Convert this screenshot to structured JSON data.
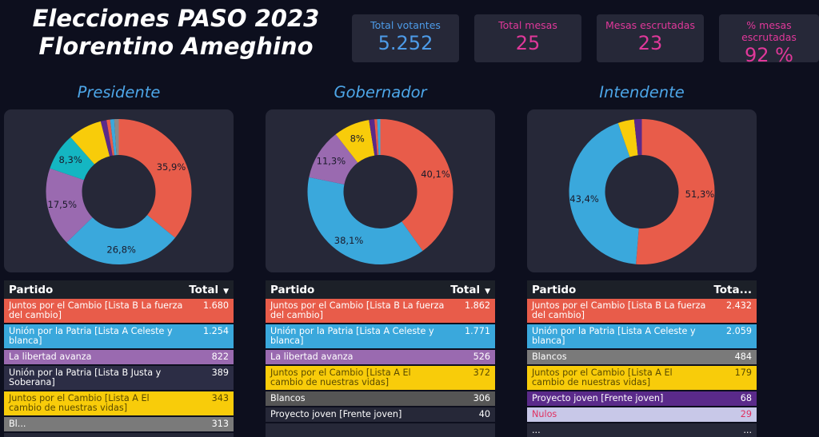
{
  "header": {
    "title_line1": "Elecciones PASO 2023",
    "title_line2": "Florentino Ameghino"
  },
  "kpis": [
    {
      "label": "Total votantes",
      "value": "5.252",
      "color": "#4d9be8"
    },
    {
      "label": "Total mesas",
      "value": "25",
      "color": "#e0389a"
    },
    {
      "label": "Mesas escrutadas",
      "value": "23",
      "color": "#e0389a"
    },
    {
      "label": "% mesas escrutadas",
      "value": "92 %",
      "color": "#e0389a"
    }
  ],
  "colors": {
    "red": "#e85c4a",
    "blue": "#3aa8dc",
    "purple": "#9a6ab0",
    "teal": "#14b6c2",
    "yellow": "#f8cc0a",
    "dark": "#2c2d45",
    "grey": "#7a7a7a",
    "violet": "#5a2a8a",
    "lavender": "#c8c8e8"
  },
  "sections": [
    {
      "title": "Presidente",
      "donut": [
        {
          "value": 35.9,
          "label": "35,9%",
          "color": "#e85c4a"
        },
        {
          "value": 26.8,
          "label": "26,8%",
          "color": "#3aa8dc"
        },
        {
          "value": 17.5,
          "label": "17,5%",
          "color": "#9a6ab0"
        },
        {
          "value": 8.3,
          "label": "8,3%",
          "color": "#14b6c2"
        },
        {
          "value": 7.5,
          "label": "",
          "color": "#f8cc0a"
        },
        {
          "value": 1.3,
          "label": "",
          "color": "#5a2a8a"
        },
        {
          "value": 0.8,
          "label": "",
          "color": "#e85c4a"
        },
        {
          "value": 0.9,
          "label": "",
          "color": "#3aa8dc"
        },
        {
          "value": 1.0,
          "label": "",
          "color": "#8a8a8a"
        }
      ],
      "table": {
        "head_party": "Partido",
        "head_total": "Total",
        "rows": [
          {
            "party": "Juntos por el Cambio [Lista B La fuerza del cambio]",
            "total": "1.680",
            "bg": "#e85c4a",
            "fg": "#ffffff"
          },
          {
            "party": "Unión por la Patria [Lista A Celeste y blanca]",
            "total": "1.254",
            "bg": "#3aa8dc",
            "fg": "#ffffff"
          },
          {
            "party": "La libertad avanza",
            "total": "822",
            "bg": "#9a6ab0",
            "fg": "#ffffff"
          },
          {
            "party": "Unión por la Patria [Lista B Justa y Soberana]",
            "total": "389",
            "bg": "#2c2d45",
            "fg": "#ffffff"
          },
          {
            "party": "Juntos por el Cambio [Lista A El cambio de nuestras vidas]",
            "total": "343",
            "bg": "#f8cc0a",
            "fg": "#5a4a00"
          },
          {
            "party": "Bl...",
            "total": "313",
            "bg": "#7a7a7a",
            "fg": "#ffffff"
          }
        ]
      }
    },
    {
      "title": "Gobernador",
      "donut": [
        {
          "value": 40.1,
          "label": "40,1%",
          "color": "#e85c4a"
        },
        {
          "value": 38.1,
          "label": "38,1%",
          "color": "#3aa8dc"
        },
        {
          "value": 11.3,
          "label": "11,3%",
          "color": "#9a6ab0"
        },
        {
          "value": 8.0,
          "label": "8%",
          "color": "#f8cc0a"
        },
        {
          "value": 1.2,
          "label": "",
          "color": "#5a2a8a"
        },
        {
          "value": 0.6,
          "label": "",
          "color": "#e85c4a"
        },
        {
          "value": 0.7,
          "label": "",
          "color": "#3aa8dc"
        }
      ],
      "table": {
        "head_party": "Partido",
        "head_total": "Total",
        "rows": [
          {
            "party": "Juntos por el Cambio [Lista B La fuerza del cambio]",
            "total": "1.862",
            "bg": "#e85c4a",
            "fg": "#ffffff"
          },
          {
            "party": "Unión por la Patria [Lista A Celeste y blanca]",
            "total": "1.771",
            "bg": "#3aa8dc",
            "fg": "#ffffff"
          },
          {
            "party": "La libertad avanza",
            "total": "526",
            "bg": "#9a6ab0",
            "fg": "#ffffff"
          },
          {
            "party": "Juntos por el Cambio [Lista A El cambio de nuestras vidas]",
            "total": "372",
            "bg": "#f8cc0a",
            "fg": "#5a4a00"
          },
          {
            "party": "Blancos",
            "total": "306",
            "bg": "#555555",
            "fg": "#ffffff"
          },
          {
            "party": "Proyecto joven [Frente joven]",
            "total": "40",
            "bg": "#262838",
            "fg": "#ffffff"
          }
        ]
      }
    },
    {
      "title": "Intendente",
      "donut": [
        {
          "value": 51.3,
          "label": "51,3%",
          "color": "#e85c4a"
        },
        {
          "value": 43.4,
          "label": "43,4%",
          "color": "#3aa8dc"
        },
        {
          "value": 3.6,
          "label": "",
          "color": "#f8cc0a"
        },
        {
          "value": 1.7,
          "label": "",
          "color": "#5a2a8a"
        }
      ],
      "table": {
        "head_party": "Partido",
        "head_total": "Tota...",
        "rows": [
          {
            "party": "Juntos por el Cambio [Lista B La fuerza del cambio]",
            "total": "2.432",
            "bg": "#e85c4a",
            "fg": "#ffffff"
          },
          {
            "party": "Unión por la Patria [Lista A Celeste y blanca]",
            "total": "2.059",
            "bg": "#3aa8dc",
            "fg": "#ffffff"
          },
          {
            "party": "Blancos",
            "total": "484",
            "bg": "#7a7a7a",
            "fg": "#ffffff"
          },
          {
            "party": "Juntos por el Cambio [Lista A El cambio de nuestras vidas]",
            "total": "179",
            "bg": "#f8cc0a",
            "fg": "#5a4a00"
          },
          {
            "party": "Proyecto joven [Frente joven]",
            "total": "68",
            "bg": "#5a2a8a",
            "fg": "#ffffff"
          },
          {
            "party": "Nulos",
            "total": "29",
            "bg": "#c8c8e8",
            "fg": "#e03060"
          },
          {
            "party": "...",
            "total": "...",
            "bg": "#262838",
            "fg": "#ffffff"
          }
        ]
      }
    }
  ]
}
